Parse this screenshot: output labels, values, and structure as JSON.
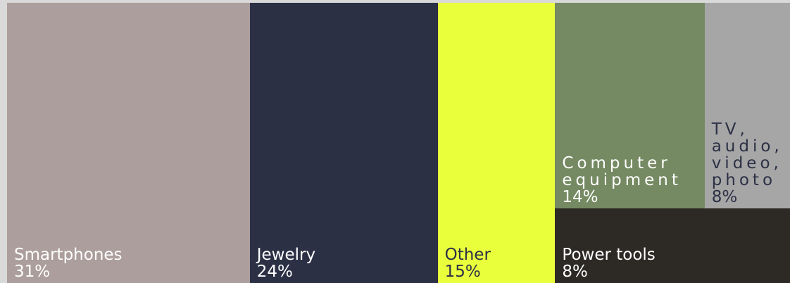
{
  "chart_data": {
    "type": "treemap",
    "title": "",
    "total_percent": 100,
    "items": [
      {
        "name": "Smartphones",
        "value": 31,
        "label": "31%",
        "color": "#ac9e9c",
        "text_color": "#ffffff"
      },
      {
        "name": "Jewelry",
        "value": 24,
        "label": "24%",
        "color": "#2b3045",
        "text_color": "#ffffff"
      },
      {
        "name": "Other",
        "value": 15,
        "label": "15%",
        "color": "#eaff3c",
        "text_color": "#2b3045"
      },
      {
        "name": "Computer equipment",
        "value": 14,
        "label": "14%",
        "color": "#758a62",
        "text_color": "#ffffff"
      },
      {
        "name": "Power tools",
        "value": 8,
        "label": "8%",
        "color": "#2d2a26",
        "text_color": "#ffffff"
      },
      {
        "name": "TV, audio, video, photo",
        "value": 8,
        "label": "8%",
        "color": "#a6a6a6",
        "text_color": "#2b3045"
      }
    ]
  }
}
